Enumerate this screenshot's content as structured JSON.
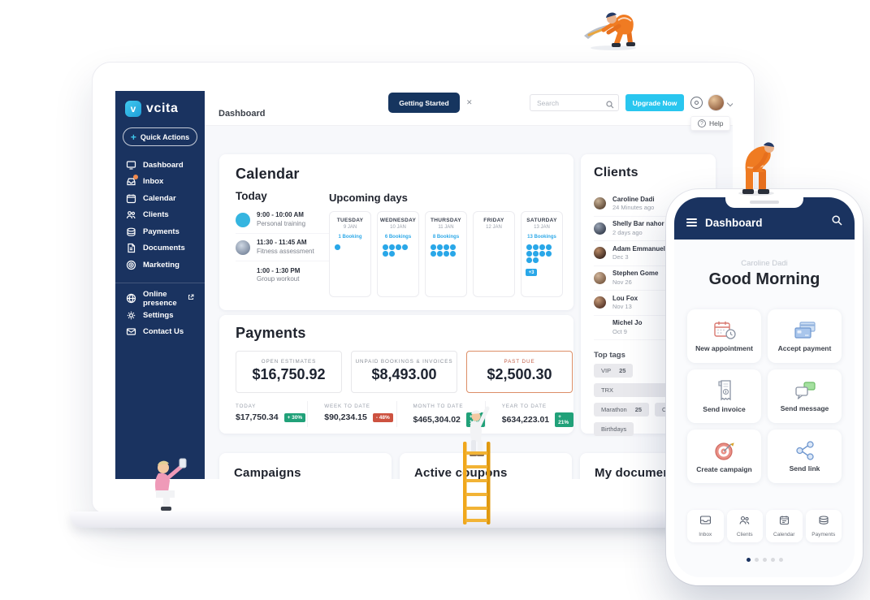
{
  "colors": {
    "navy": "#1A3360",
    "cyan": "#29C6EF",
    "dot_blue": "#29A7E8",
    "green": "#21A179",
    "red": "#CD5240",
    "past_due": "#C2614A"
  },
  "sidebar": {
    "logo_text": "vcita",
    "quick_actions_label": "Quick Actions",
    "items": [
      {
        "label": "Dashboard",
        "icon": "dashboard-icon"
      },
      {
        "label": "Inbox",
        "icon": "inbox-icon"
      },
      {
        "label": "Calendar",
        "icon": "calendar-icon"
      },
      {
        "label": "Clients",
        "icon": "clients-icon"
      },
      {
        "label": "Payments",
        "icon": "payments-icon"
      },
      {
        "label": "Documents",
        "icon": "documents-icon"
      },
      {
        "label": "Marketing",
        "icon": "marketing-icon"
      }
    ],
    "secondary_items": [
      {
        "label": "Online presence",
        "icon": "globe-icon"
      },
      {
        "label": "Settings",
        "icon": "gear-icon"
      },
      {
        "label": "Contact Us",
        "icon": "mail-icon"
      }
    ]
  },
  "topbar": {
    "page_title": "Dashboard",
    "getting_started_label": "Getting Started",
    "close_glyph": "✕",
    "search_placeholder": "Search",
    "upgrade_label": "Upgrade Now",
    "help_label": "Help",
    "help_glyph": "?"
  },
  "calendar": {
    "title": "Calendar",
    "today_title": "Today",
    "events": [
      {
        "time": "9:00 - 10:00 AM",
        "name": "Personal training"
      },
      {
        "time": "11:30 - 11:45 AM",
        "name": "Fitness assessment"
      },
      {
        "time": "1:00 - 1:30 PM",
        "name": "Group workout"
      }
    ],
    "upcoming_title": "Upcoming days",
    "days": [
      {
        "day": "TUESDAY",
        "date": "9 JAN",
        "bookings": "1 Booking",
        "dots": 1,
        "extra": ""
      },
      {
        "day": "WEDNESDAY",
        "date": "10 JAN",
        "bookings": "6 Bookings",
        "dots": 6,
        "extra": ""
      },
      {
        "day": "THURSDAY",
        "date": "11 JAN",
        "bookings": "8 Bookings",
        "dots": 8,
        "extra": ""
      },
      {
        "day": "FRIDAY",
        "date": "12 JAN",
        "bookings": "",
        "dots": 0,
        "extra": ""
      },
      {
        "day": "SATURDAY",
        "date": "13 JAN",
        "bookings": "13 Bookings",
        "dots": 10,
        "extra": "+3"
      }
    ]
  },
  "payments": {
    "title": "Payments",
    "boxes": [
      {
        "label": "OPEN ESTIMATES",
        "value": "$16,750.92",
        "highlight": false
      },
      {
        "label": "UNPAID BOOKINGS & INVOICES",
        "value": "$8,493.00",
        "highlight": false
      },
      {
        "label": "PAST DUE",
        "value": "$2,500.30",
        "highlight": true
      }
    ],
    "stats": [
      {
        "label": "TODAY",
        "value": "$17,750.34",
        "change": "+ 30%",
        "down": false
      },
      {
        "label": "WEEK TO DATE",
        "value": "$90,234.15",
        "change": "- 48%",
        "down": true
      },
      {
        "label": "MONTH TO DATE",
        "value": "$465,304.02",
        "change": "+ 10%",
        "down": false
      },
      {
        "label": "YEAR TO DATE",
        "value": "$634,223.01",
        "change": "+ 21%",
        "down": false
      }
    ]
  },
  "clients": {
    "title": "Clients",
    "list": [
      {
        "name": "Caroline Dadi",
        "when": "24 Minutes ago"
      },
      {
        "name": "Shelly Bar nahor",
        "when": "2 days ago"
      },
      {
        "name": "Adam Emmanuel",
        "when": "Dec 3"
      },
      {
        "name": "Stephen Gome",
        "when": "Nov 26"
      },
      {
        "name": "Lou Fox",
        "when": "Nov 13"
      },
      {
        "name": "Michel Jo",
        "when": "Oct 9"
      }
    ],
    "top_tags_title": "Top tags",
    "tags": [
      {
        "label": "VIP",
        "count": "25"
      },
      {
        "label": "TRX",
        "count": ""
      },
      {
        "label": "Marathon",
        "count": "25"
      },
      {
        "label": "Old",
        "count": "3"
      },
      {
        "label": "Birthdays",
        "count": ""
      }
    ]
  },
  "bottom_cards": [
    {
      "title": "Campaigns"
    },
    {
      "title": "Active coupons"
    },
    {
      "title": "My documents"
    }
  ],
  "phone": {
    "header_title": "Dashboard",
    "greeting_name": "Caroline Dadi",
    "greeting": "Good Morning",
    "actions": [
      {
        "label": "New appointment",
        "icon": "appointment-icon"
      },
      {
        "label": "Accept payment",
        "icon": "credit-card-icon"
      },
      {
        "label": "Send invoice",
        "icon": "invoice-icon"
      },
      {
        "label": "Send message",
        "icon": "message-icon"
      },
      {
        "label": "Create campaign",
        "icon": "target-icon"
      },
      {
        "label": "Send link",
        "icon": "share-icon"
      }
    ],
    "nav": [
      {
        "label": "Inbox",
        "icon": "inbox-icon"
      },
      {
        "label": "Clients",
        "icon": "clients-icon"
      },
      {
        "label": "Calendar",
        "icon": "calendar-icon"
      },
      {
        "label": "Payments",
        "icon": "payments-icon"
      }
    ],
    "dots_count": 5,
    "active_dot": 0
  }
}
